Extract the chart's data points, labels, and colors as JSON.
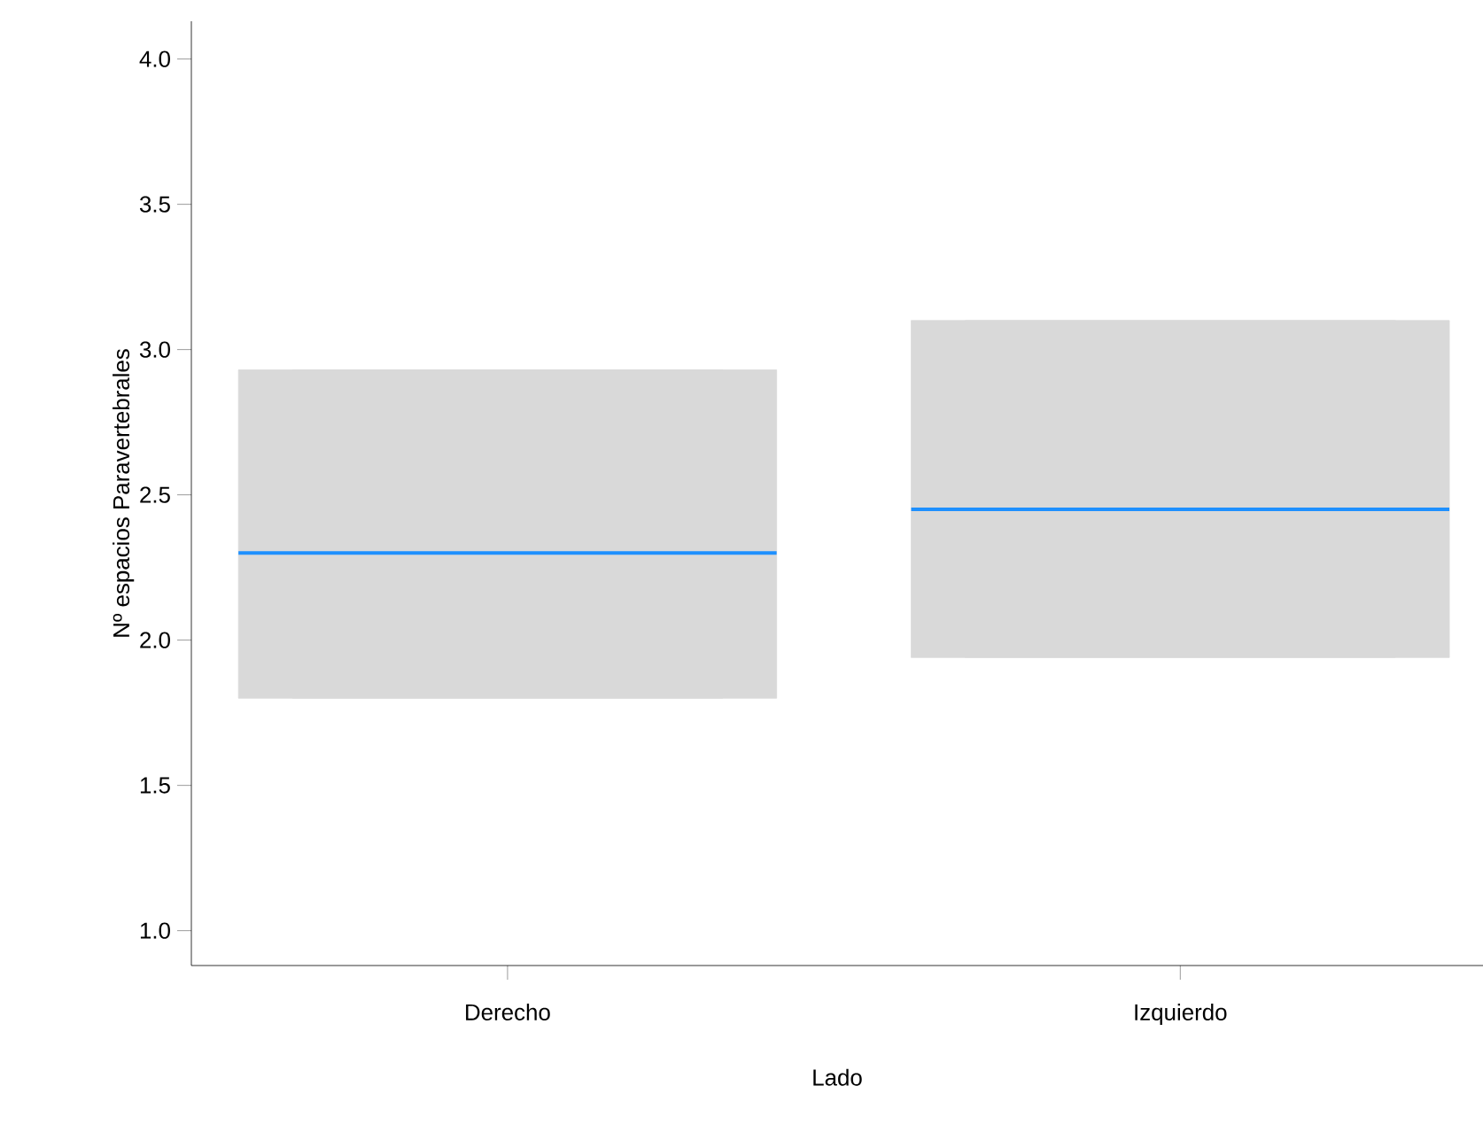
{
  "chart_data": {
    "type": "box",
    "xlabel": "Lado",
    "ylabel": "Nº espacios Paravertebrales",
    "color": "#1e90ff",
    "categories": [
      "Derecho",
      "Izquierdo"
    ],
    "ylim": [
      0.88,
      4.13
    ],
    "yticks": [
      {
        "value": 1,
        "label": "1.0"
      },
      {
        "value": 1.5,
        "label": "1.5"
      },
      {
        "value": 2,
        "label": "2.0"
      },
      {
        "value": 2.5,
        "label": "2.5"
      },
      {
        "value": 3,
        "label": "3.0"
      },
      {
        "value": 3.5,
        "label": "3.5"
      },
      {
        "value": 4,
        "label": "4.0"
      }
    ],
    "series": [
      {
        "color": "#d9d9d9",
        "boxes": [
          {
            "low": 1.8,
            "q1": 1.8,
            "median": 2.3,
            "q3": 2.93,
            "high": 2.93
          },
          {
            "low": 1.94,
            "q1": 1.94,
            "median": 2.45,
            "q3": 3.1,
            "high": 3.1
          }
        ]
      }
    ]
  }
}
